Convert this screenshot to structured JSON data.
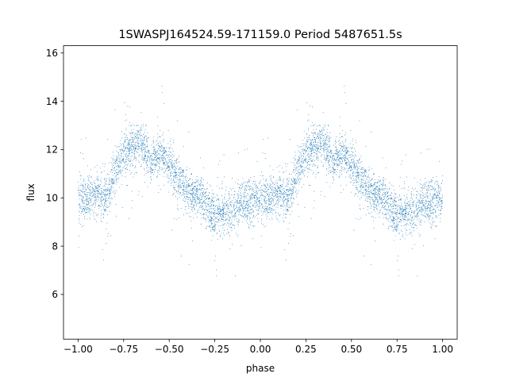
{
  "chart_data": {
    "type": "scatter",
    "title": "1SWASPJ164524.59-171159.0 Period 5487651.5s",
    "xlabel": "phase",
    "ylabel": "flux",
    "xlim": [
      -1.08,
      1.08
    ],
    "ylim": [
      4.15,
      16.3
    ],
    "xticks": [
      -1.0,
      -0.75,
      -0.5,
      -0.25,
      0.0,
      0.25,
      0.5,
      0.75,
      1.0
    ],
    "xtick_labels": [
      "−1.00",
      "−0.75",
      "−0.50",
      "−0.25",
      "0.00",
      "0.25",
      "0.50",
      "0.75",
      "1.00"
    ],
    "yticks": [
      6,
      8,
      10,
      12,
      14,
      16
    ],
    "ytick_labels": [
      "6",
      "8",
      "10",
      "12",
      "14",
      "16"
    ],
    "grid": false,
    "legend": "none",
    "marker_color": "#1f77b4",
    "phase_range": [
      -1.0,
      1.0
    ],
    "repeat_period": 1.0,
    "base_curve": {
      "phase": [
        0.0,
        0.05,
        0.1,
        0.15,
        0.2,
        0.25,
        0.3,
        0.35,
        0.4,
        0.45,
        0.5,
        0.55,
        0.6,
        0.65,
        0.7,
        0.75,
        0.8,
        0.85,
        0.9,
        0.95,
        1.0
      ],
      "flux": [
        10.0,
        10.0,
        10.2,
        10.0,
        11.0,
        11.8,
        12.1,
        12.3,
        11.5,
        11.8,
        11.5,
        10.8,
        10.2,
        10.1,
        9.8,
        9.3,
        9.5,
        9.5,
        9.8,
        9.8,
        10.0
      ]
    },
    "scatter_sigma": 0.45,
    "n_points": 6000
  }
}
